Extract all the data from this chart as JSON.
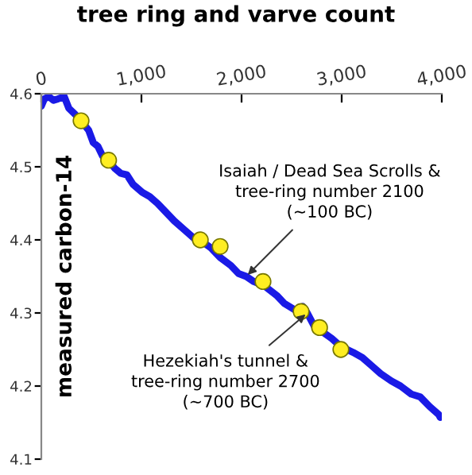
{
  "chart_data": {
    "type": "line",
    "xlabel": "tree ring and varve count",
    "ylabel": "measured carbon-14",
    "xlim": [
      0,
      4000
    ],
    "ylim": [
      4.1,
      4.6
    ],
    "xticks": [
      0,
      {
        "value": 1000,
        "label": "1,000"
      },
      {
        "value": 2000,
        "label": "2,000"
      },
      {
        "value": 3000,
        "label": "3,000"
      },
      {
        "value": 4000,
        "label": "4,000"
      }
    ],
    "yticks": [
      4.1,
      4.2,
      4.3,
      4.4,
      4.5,
      4.6
    ],
    "grid": false,
    "marker": "none",
    "line_style": "solid",
    "series": [
      {
        "color": "#1a1ae6",
        "x": [
          0,
          30,
          76,
          122,
          168,
          229,
          275,
          336,
          397,
          473,
          519,
          565,
          611,
          672,
          733,
          794,
          855,
          916,
          1008,
          1084,
          1160,
          1237,
          1328,
          1435,
          1527,
          1603,
          1695,
          1786,
          1893,
          1969,
          2046,
          2122,
          2229,
          2351,
          2427,
          2534,
          2611,
          2656,
          2733,
          2809,
          2901,
          2992,
          3115,
          3206,
          3298,
          3389,
          3496,
          3588,
          3695,
          3786,
          3878,
          3969,
          3985
        ],
        "values": [
          4.583,
          4.593,
          4.596,
          4.591,
          4.593,
          4.596,
          4.58,
          4.572,
          4.563,
          4.55,
          4.533,
          4.528,
          4.515,
          4.509,
          4.498,
          4.491,
          4.489,
          4.476,
          4.465,
          4.459,
          4.45,
          4.439,
          4.426,
          4.413,
          4.402,
          4.398,
          4.389,
          4.376,
          4.365,
          4.354,
          4.35,
          4.343,
          4.337,
          4.324,
          4.313,
          4.304,
          4.309,
          4.3,
          4.28,
          4.274,
          4.265,
          4.254,
          4.246,
          4.239,
          4.228,
          4.217,
          4.207,
          4.2,
          4.189,
          4.185,
          4.172,
          4.161,
          4.157
        ]
      },
      {
        "type": "scatter",
        "marker": "circle",
        "color": "#ffee22",
        "x": [
          397,
          672,
          1588,
          1786,
          2214,
          2595,
          2779,
          2992
        ],
        "values": [
          4.563,
          4.509,
          4.4,
          4.391,
          4.343,
          4.302,
          4.28,
          4.25
        ]
      }
    ],
    "annotations": [
      {
        "text": "Isaiah / Dead Sea Scrolls &\ntree-ring number 2100\n(~100 BC)",
        "x": 2046,
        "y": 4.35
      },
      {
        "text": "Hezekiah's tunnel &\ntree-ring number 2700\n(~700 BC)",
        "x": 2656,
        "y": 4.3
      }
    ]
  }
}
